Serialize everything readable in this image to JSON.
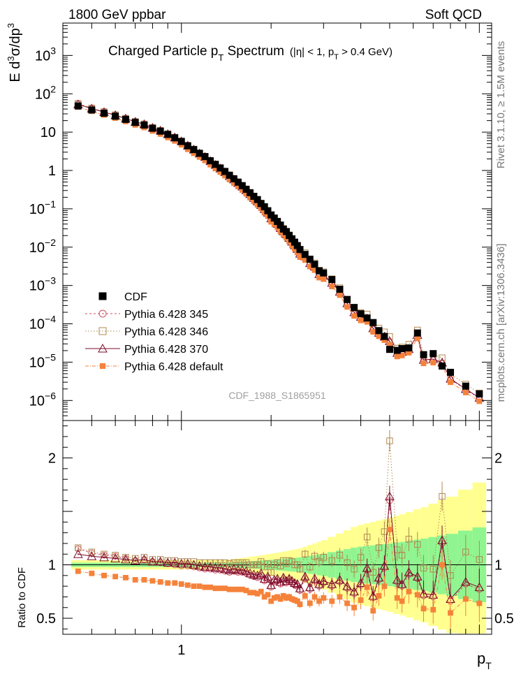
{
  "header": {
    "left": "1800 GeV ppbar",
    "right": "Soft QCD",
    "side_top": "Rivet 3.1.10, ≥ 1.5M events",
    "side_bottom": "mcplots.cern.ch [arXiv:1306.3436]",
    "watermark": "CDF_1988_S1865951"
  },
  "chart_data": {
    "type": "scatter",
    "title": "Charged Particle p_T Spectrum",
    "title_parts": {
      "main": "Charged Particle p",
      "sub": "T",
      "tail": " Spectrum",
      "cut_open": "(|η| < 1, p",
      "cut_sub": "T",
      "cut_close": " > 0.4 GeV)"
    },
    "xlabel": "p_T",
    "xlabel_parts": {
      "main": "p",
      "sub": "T"
    },
    "xscale": "log",
    "xlim": [
      0.4,
      11
    ],
    "x_tick_labels": [
      {
        "value": 1,
        "label": "1"
      }
    ],
    "upper": {
      "ylabel": "E d³σ/dp³",
      "ylabel_parts": [
        "E d",
        "3",
        "σ/dp",
        "3"
      ],
      "yscale": "log",
      "ylim": [
        3e-07,
        7000
      ],
      "y_tick_labels": [
        {
          "value": 1000,
          "base": "10",
          "exp": "3"
        },
        {
          "value": 100,
          "base": "10",
          "exp": "2"
        },
        {
          "value": 10,
          "base": "10",
          "exp": ""
        },
        {
          "value": 1,
          "base": "1",
          "exp": ""
        },
        {
          "value": 0.1,
          "base": "10",
          "exp": "−1"
        },
        {
          "value": 0.01,
          "base": "10",
          "exp": "−2"
        },
        {
          "value": 0.001,
          "base": "10",
          "exp": "−3"
        },
        {
          "value": 0.0001,
          "base": "10",
          "exp": "−4"
        },
        {
          "value": 1e-05,
          "base": "10",
          "exp": "−5"
        },
        {
          "value": 1e-06,
          "base": "10",
          "exp": "−6"
        }
      ]
    },
    "lower": {
      "ylabel": "Ratio to CDF",
      "ylim": [
        0.35,
        2.35
      ],
      "y_tick_labels": [
        {
          "value": 2,
          "label": "2"
        },
        {
          "value": 1,
          "label": "1"
        },
        {
          "value": 0.5,
          "label": "0.5"
        }
      ]
    },
    "legend": {
      "placement": "bottom-left",
      "entries": [
        {
          "label": "CDF",
          "marker": "filled-square",
          "color": "#000000"
        },
        {
          "label": "Pythia 6.428 345",
          "marker": "open-circle",
          "color": "#d14f5f"
        },
        {
          "label": "Pythia 6.428 346",
          "marker": "open-square",
          "color": "#b08850"
        },
        {
          "label": "Pythia 6.428 370",
          "marker": "open-triangle",
          "color": "#7a0a2a"
        },
        {
          "label": "Pythia 6.428 default",
          "marker": "filled-square",
          "color": "#f5823a"
        }
      ]
    },
    "bands": {
      "inner_color": "#90f590",
      "outer_color": "#ffff90"
    },
    "pt": [
      0.45,
      0.5,
      0.55,
      0.6,
      0.65,
      0.7,
      0.75,
      0.8,
      0.85,
      0.9,
      0.95,
      1.0,
      1.05,
      1.1,
      1.15,
      1.2,
      1.25,
      1.3,
      1.35,
      1.4,
      1.45,
      1.5,
      1.55,
      1.6,
      1.65,
      1.7,
      1.75,
      1.8,
      1.85,
      1.9,
      1.95,
      2.0,
      2.05,
      2.1,
      2.15,
      2.2,
      2.25,
      2.3,
      2.35,
      2.4,
      2.45,
      2.5,
      2.6,
      2.7,
      2.8,
      2.9,
      3.0,
      3.2,
      3.4,
      3.6,
      3.8,
      4.0,
      4.2,
      4.4,
      4.6,
      4.8,
      5.0,
      5.3,
      5.5,
      5.8,
      6.2,
      6.5,
      7.0,
      7.5,
      8.0,
      9.0,
      10.0
    ],
    "series": [
      {
        "name": "CDF",
        "values": [
          48.1,
          37.9,
          31.1,
          26.0,
          21.5,
          17.9,
          15.3,
          12.6,
          10.6,
          8.7,
          7.1,
          5.7,
          4.4,
          3.5,
          2.8,
          2.3,
          1.79,
          1.44,
          1.16,
          0.939,
          0.751,
          0.606,
          0.495,
          0.401,
          0.323,
          0.263,
          0.212,
          0.174,
          0.137,
          0.113,
          0.0891,
          0.0693,
          0.0573,
          0.0467,
          0.0376,
          0.0295,
          0.0255,
          0.0201,
          0.0164,
          0.0135,
          0.011,
          0.00868,
          0.00646,
          0.00485,
          0.00358,
          0.00242,
          0.00212,
          0.00143,
          0.000797,
          0.00043,
          0.000267,
          0.000183,
          0.000142,
          0.000108,
          6.65e-05,
          4.68e-05,
          2.15e-05,
          2.03e-05,
          2.26e-05,
          2.35e-05,
          5.77e-05,
          1.57e-05,
          1.67e-05,
          7.92e-06,
          5.43e-06,
          2.37e-06,
          1.49e-06
        ]
      },
      {
        "name": "Pythia 6.428 345",
        "ratios": [
          1.15,
          1.11,
          1.09,
          1.08,
          1.06,
          1.04,
          1.05,
          1.03,
          1.02,
          1.01,
          1.0,
          0.99,
          0.99,
          0.98,
          0.97,
          0.96,
          0.96,
          0.95,
          0.95,
          0.94,
          0.93,
          0.94,
          0.93,
          0.93,
          0.92,
          0.9,
          0.89,
          0.88,
          0.9,
          0.85,
          0.87,
          0.79,
          0.84,
          0.85,
          0.82,
          0.86,
          0.83,
          0.85,
          0.83,
          0.81,
          0.8,
          0.76,
          0.87,
          0.77,
          0.85,
          0.8,
          0.83,
          0.8,
          0.84,
          0.78,
          0.73,
          0.81,
          0.95,
          0.69,
          0.86,
          0.97,
          1.6,
          0.84,
          0.8,
          0.91,
          0.87,
          0.71,
          0.7,
          1.2,
          0.66,
          0.82,
          0.77
        ]
      },
      {
        "name": "Pythia 6.428 346",
        "ratios": [
          1.16,
          1.12,
          1.1,
          1.09,
          1.07,
          1.06,
          1.07,
          1.05,
          1.05,
          1.04,
          1.04,
          1.03,
          1.03,
          1.03,
          1.02,
          1.02,
          1.02,
          1.02,
          1.02,
          1.02,
          1.01,
          1.02,
          1.02,
          1.02,
          1.02,
          1.0,
          1.0,
          1.0,
          1.03,
          0.98,
          1.01,
          0.93,
          1.0,
          1.02,
          0.99,
          1.04,
          1.01,
          1.04,
          1.03,
          1.0,
          1.0,
          0.96,
          1.1,
          0.98,
          1.08,
          1.03,
          1.07,
          1.04,
          1.09,
          1.02,
          0.96,
          1.07,
          1.26,
          0.93,
          1.16,
          1.31,
          2.16,
          1.14,
          1.09,
          1.24,
          1.19,
          0.97,
          0.96,
          1.64,
          0.9,
          1.12,
          1.05
        ]
      },
      {
        "name": "Pythia 6.428 370",
        "ratios": [
          1.1,
          1.08,
          1.07,
          1.06,
          1.05,
          1.04,
          1.05,
          1.03,
          1.03,
          1.02,
          1.02,
          1.01,
          1.01,
          1.0,
          0.99,
          0.98,
          0.98,
          0.97,
          0.97,
          0.96,
          0.95,
          0.96,
          0.95,
          0.95,
          0.94,
          0.92,
          0.91,
          0.9,
          0.92,
          0.87,
          0.89,
          0.81,
          0.86,
          0.87,
          0.84,
          0.88,
          0.85,
          0.87,
          0.85,
          0.83,
          0.82,
          0.78,
          0.89,
          0.79,
          0.87,
          0.82,
          0.85,
          0.82,
          0.86,
          0.8,
          0.75,
          0.83,
          0.97,
          0.71,
          0.88,
          0.99,
          1.64,
          0.86,
          0.82,
          0.93,
          0.89,
          0.73,
          0.72,
          1.23,
          0.68,
          0.84,
          0.79
        ]
      },
      {
        "name": "Pythia 6.428 default",
        "ratios": [
          0.94,
          0.92,
          0.9,
          0.89,
          0.88,
          0.86,
          0.86,
          0.85,
          0.84,
          0.83,
          0.83,
          0.82,
          0.81,
          0.8,
          0.8,
          0.79,
          0.79,
          0.78,
          0.78,
          0.78,
          0.77,
          0.77,
          0.77,
          0.77,
          0.76,
          0.74,
          0.74,
          0.73,
          0.75,
          0.7,
          0.72,
          0.66,
          0.69,
          0.7,
          0.68,
          0.71,
          0.69,
          0.7,
          0.68,
          0.67,
          0.66,
          0.63,
          0.71,
          0.64,
          0.7,
          0.66,
          0.69,
          0.66,
          0.7,
          0.64,
          0.6,
          0.67,
          0.79,
          0.57,
          0.71,
          0.8,
          1.33,
          0.69,
          0.66,
          0.75,
          0.72,
          0.59,
          0.58,
          1.0,
          0.55,
          0.68,
          0.64
        ]
      }
    ]
  }
}
